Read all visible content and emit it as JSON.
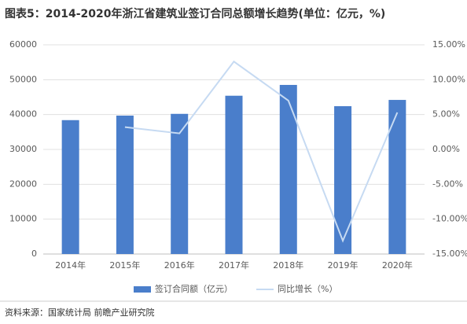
{
  "title": "图表5：2014-2020年浙江省建筑业签订合同总额增长趋势(单位：亿元，%)",
  "source": "资料来源：国家统计局 前瞻产业研究院",
  "chart_data": {
    "type": "bar",
    "categories": [
      "2014年",
      "2015年",
      "2016年",
      "2017年",
      "2018年",
      "2019年",
      "2020年"
    ],
    "series": [
      {
        "name": "签订合同额（亿元）",
        "color": "#4a7ecb",
        "values": [
          38400,
          39700,
          40200,
          45400,
          48500,
          42400,
          44200
        ]
      },
      {
        "name": "同比增长（%）",
        "color": "#c6daf2",
        "axis": "y2",
        "type": "line",
        "values": [
          null,
          3.2,
          2.3,
          12.6,
          7.0,
          -13.1,
          5.3
        ]
      }
    ],
    "ylim": [
      0,
      60000
    ],
    "yticks": [
      0,
      10000,
      20000,
      30000,
      40000,
      50000,
      60000
    ],
    "y2lim": [
      -15,
      15
    ],
    "y2ticks": [
      {
        "value": -15,
        "label": "-15.00%"
      },
      {
        "value": -10,
        "label": "-10.00%"
      },
      {
        "value": -5,
        "label": "-5.00%"
      },
      {
        "value": 0,
        "label": "0.00%"
      },
      {
        "value": 5,
        "label": "5.00%"
      },
      {
        "value": 10,
        "label": "10.00%"
      },
      {
        "value": 15,
        "label": "15.00%"
      }
    ],
    "grid": true,
    "legend": "bottom"
  }
}
